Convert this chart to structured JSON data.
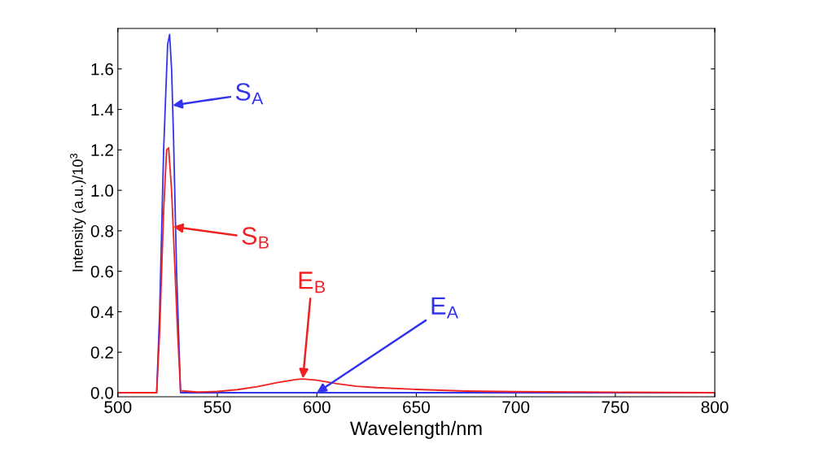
{
  "chart_data": {
    "type": "line",
    "xlabel": "Wavelength/nm",
    "ylabel": "Intensity (a.u.)/10$^{3}$",
    "xlim": [
      500,
      800
    ],
    "xticks": [
      500,
      550,
      600,
      650,
      700,
      750,
      800
    ],
    "ylim": [
      -0.02,
      1.8
    ],
    "yticks": [
      {
        "value": 0,
        "label": "0.0"
      },
      0.2,
      0.4,
      0.6,
      0.8,
      {
        "value": 1,
        "label": "1.0"
      },
      1.2,
      1.4,
      1.6
    ],
    "grid": false,
    "legend": false,
    "marker": "none",
    "line_style": "solid",
    "series": [
      {
        "color": "#3333ee",
        "x": [
          500,
          519.5,
          521,
          523,
          525,
          526,
          527,
          528,
          529.5,
          531.5,
          550,
          600,
          700,
          800
        ],
        "values": [
          0,
          0,
          0.4,
          1.2,
          1.72,
          1.77,
          1.6,
          1.25,
          0.6,
          0,
          0,
          0,
          0,
          0
        ]
      },
      {
        "color": "#ee2222",
        "x": [
          500,
          519.5,
          521,
          523,
          524.5,
          525.5,
          527,
          528.5,
          530,
          531.5,
          540,
          550,
          560,
          570,
          580,
          590,
          593,
          600,
          610,
          620,
          630,
          650,
          675,
          700,
          750,
          800
        ],
        "values": [
          0,
          0,
          0.3,
          0.9,
          1.2,
          1.21,
          1.0,
          0.65,
          0.3,
          0.01,
          0.003,
          0.006,
          0.015,
          0.03,
          0.05,
          0.066,
          0.068,
          0.062,
          0.045,
          0.032,
          0.025,
          0.016,
          0.008,
          0.005,
          0.002,
          0
        ]
      }
    ],
    "annotations": [
      {
        "text": "S$_{A}$",
        "x": 527.5,
        "y": 1.42
      },
      {
        "text": "S$_{B}$",
        "x": 527.8,
        "y": 0.82
      },
      {
        "text": "E$_{B}$",
        "x": 593,
        "y": 0.07
      },
      {
        "text": "E$_{A}$",
        "x": 600,
        "y": 0.0
      }
    ]
  }
}
